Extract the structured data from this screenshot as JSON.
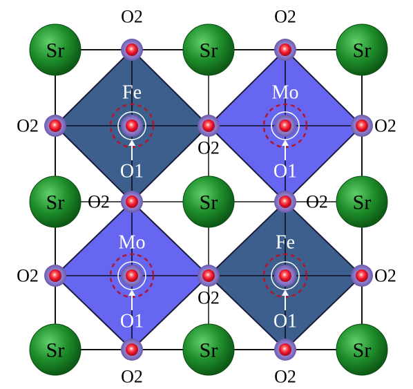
{
  "figure": {
    "atoms": {
      "sr": "Sr",
      "fe": "Fe",
      "mo": "Mo",
      "o1": "O1",
      "o2": "O2"
    },
    "grid": {
      "sr_sites": [
        [
          0,
          0
        ],
        [
          1,
          0
        ],
        [
          2,
          0
        ],
        [
          0,
          1
        ],
        [
          1,
          1
        ],
        [
          2,
          1
        ],
        [
          0,
          2
        ],
        [
          1,
          2
        ],
        [
          2,
          2
        ]
      ],
      "octahedra": [
        {
          "col": 0,
          "row": 0,
          "metal": "Fe"
        },
        {
          "col": 1,
          "row": 0,
          "metal": "Mo"
        },
        {
          "col": 0,
          "row": 1,
          "metal": "Mo"
        },
        {
          "col": 1,
          "row": 1,
          "metal": "Fe"
        }
      ]
    },
    "colors": {
      "fe_octahedron": "#3d5f8d",
      "mo_octahedron": "#6666f0",
      "sr_sphere": "#1f8f2b",
      "oxygen_core": "#e8132a",
      "oxygen_halo": "#8a78c8",
      "dashed_ring": "#b3142a",
      "cell_lines": "#111111"
    }
  }
}
